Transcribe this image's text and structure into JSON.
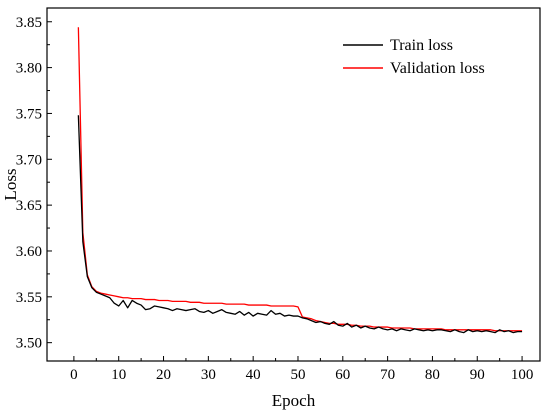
{
  "chart_data": {
    "type": "line",
    "title": "",
    "xlabel": "Epoch",
    "ylabel": "Loss",
    "xlim": [
      -6,
      104
    ],
    "ylim": [
      3.48,
      3.865
    ],
    "xticks": [
      "0",
      "10",
      "20",
      "30",
      "40",
      "50",
      "60",
      "70",
      "80",
      "90",
      "100"
    ],
    "yticks": [
      "3.50",
      "3.55",
      "3.60",
      "3.65",
      "3.70",
      "3.75",
      "3.80",
      "3.85"
    ],
    "legend_position": "top-right",
    "grid": false,
    "series": [
      {
        "name": "Train loss",
        "color": "#000000",
        "x": [
          1,
          2,
          3,
          4,
          5,
          6,
          7,
          8,
          9,
          10,
          11,
          12,
          13,
          14,
          15,
          16,
          17,
          18,
          19,
          20,
          21,
          22,
          23,
          24,
          25,
          26,
          27,
          28,
          29,
          30,
          31,
          32,
          33,
          34,
          35,
          36,
          37,
          38,
          39,
          40,
          41,
          42,
          43,
          44,
          45,
          46,
          47,
          48,
          49,
          50,
          51,
          52,
          53,
          54,
          55,
          56,
          57,
          58,
          59,
          60,
          61,
          62,
          63,
          64,
          65,
          66,
          67,
          68,
          69,
          70,
          71,
          72,
          73,
          74,
          75,
          76,
          77,
          78,
          79,
          80,
          81,
          82,
          83,
          84,
          85,
          86,
          87,
          88,
          89,
          90,
          91,
          92,
          93,
          94,
          95,
          96,
          97,
          98,
          99,
          100
        ],
        "y": [
          3.748,
          3.61,
          3.572,
          3.56,
          3.555,
          3.553,
          3.551,
          3.549,
          3.543,
          3.54,
          3.546,
          3.538,
          3.546,
          3.543,
          3.541,
          3.536,
          3.537,
          3.54,
          3.539,
          3.538,
          3.537,
          3.535,
          3.537,
          3.536,
          3.535,
          3.536,
          3.537,
          3.534,
          3.533,
          3.535,
          3.532,
          3.534,
          3.536,
          3.533,
          3.532,
          3.531,
          3.534,
          3.53,
          3.533,
          3.529,
          3.532,
          3.531,
          3.53,
          3.535,
          3.531,
          3.532,
          3.529,
          3.53,
          3.529,
          3.529,
          3.527,
          3.526,
          3.524,
          3.522,
          3.523,
          3.521,
          3.52,
          3.523,
          3.519,
          3.518,
          3.521,
          3.517,
          3.519,
          3.516,
          3.518,
          3.516,
          3.515,
          3.517,
          3.515,
          3.514,
          3.515,
          3.513,
          3.515,
          3.514,
          3.513,
          3.515,
          3.514,
          3.513,
          3.514,
          3.513,
          3.514,
          3.514,
          3.513,
          3.512,
          3.514,
          3.512,
          3.511,
          3.514,
          3.512,
          3.513,
          3.512,
          3.513,
          3.512,
          3.511,
          3.514,
          3.512,
          3.513,
          3.511,
          3.512,
          3.512
        ]
      },
      {
        "name": "Validation loss",
        "color": "#ff0000",
        "x": [
          1,
          2,
          3,
          4,
          5,
          6,
          7,
          8,
          9,
          10,
          11,
          12,
          13,
          14,
          15,
          16,
          17,
          18,
          19,
          20,
          21,
          22,
          23,
          24,
          25,
          26,
          27,
          28,
          29,
          30,
          31,
          32,
          33,
          34,
          35,
          36,
          37,
          38,
          39,
          40,
          41,
          42,
          43,
          44,
          45,
          46,
          47,
          48,
          49,
          50,
          51,
          52,
          53,
          54,
          55,
          56,
          57,
          58,
          59,
          60,
          61,
          62,
          63,
          64,
          65,
          66,
          67,
          68,
          69,
          70,
          71,
          72,
          73,
          74,
          75,
          76,
          77,
          78,
          79,
          80,
          81,
          82,
          83,
          84,
          85,
          86,
          87,
          88,
          89,
          90,
          91,
          92,
          93,
          94,
          95,
          96,
          97,
          98,
          99,
          100
        ],
        "y": [
          3.844,
          3.62,
          3.574,
          3.561,
          3.556,
          3.554,
          3.553,
          3.552,
          3.551,
          3.55,
          3.549,
          3.549,
          3.548,
          3.548,
          3.548,
          3.547,
          3.547,
          3.547,
          3.546,
          3.546,
          3.546,
          3.545,
          3.545,
          3.545,
          3.545,
          3.544,
          3.544,
          3.544,
          3.543,
          3.543,
          3.543,
          3.543,
          3.543,
          3.542,
          3.542,
          3.542,
          3.542,
          3.542,
          3.541,
          3.541,
          3.541,
          3.541,
          3.541,
          3.54,
          3.54,
          3.54,
          3.54,
          3.54,
          3.54,
          3.539,
          3.528,
          3.527,
          3.526,
          3.524,
          3.523,
          3.522,
          3.521,
          3.521,
          3.52,
          3.52,
          3.52,
          3.519,
          3.519,
          3.518,
          3.518,
          3.518,
          3.517,
          3.517,
          3.517,
          3.517,
          3.516,
          3.516,
          3.516,
          3.516,
          3.516,
          3.515,
          3.515,
          3.515,
          3.515,
          3.515,
          3.515,
          3.515,
          3.514,
          3.514,
          3.514,
          3.514,
          3.514,
          3.514,
          3.514,
          3.514,
          3.514,
          3.514,
          3.514,
          3.513,
          3.513,
          3.513,
          3.513,
          3.513,
          3.513,
          3.513
        ]
      }
    ]
  }
}
